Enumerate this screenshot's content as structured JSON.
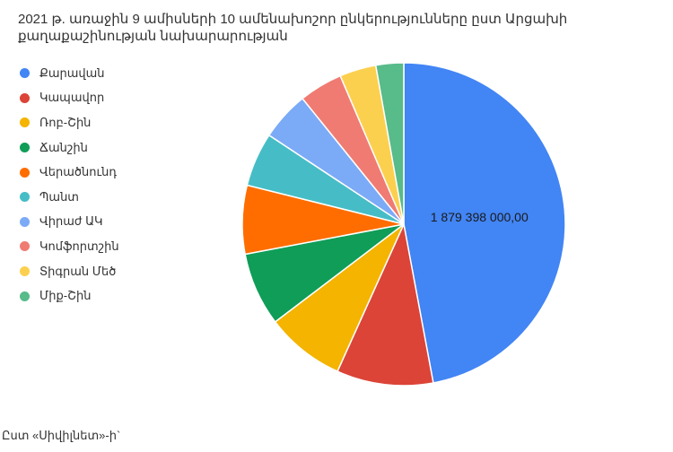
{
  "chart_data": {
    "type": "pie",
    "title": "2021 թ. առաջին 9 ամիսների 10 ամենախոշոր ընկերությունները ըստ Արցախի քաղաքաշինության նախարարության",
    "categories": [
      "Քարավան",
      "Կապավոր",
      "Ռոբ-Շին",
      "Ճանշին",
      "Վերածնունդ",
      "Պանտ",
      "Վիրաժ ԱԿ",
      "Կոմֆորտշին",
      "Տիգրան Մեծ",
      "Միք-Շին"
    ],
    "values": [
      1879398000,
      386000000,
      316000000,
      294000000,
      274000000,
      216000000,
      196000000,
      174000000,
      146000000,
      111000000
    ],
    "colors": [
      "#4285f4",
      "#db4437",
      "#f4b400",
      "#0f9d58",
      "#ff6d01",
      "#46bdc6",
      "#7baaf7",
      "#f07b72",
      "#fcd04f",
      "#57bb8a"
    ],
    "data_labels": [
      {
        "category": "Քարավան",
        "text": "1 879 398 000,00"
      }
    ],
    "legend": "left"
  },
  "caption": "Ըստ «Սիվիլնետ»-ի`"
}
